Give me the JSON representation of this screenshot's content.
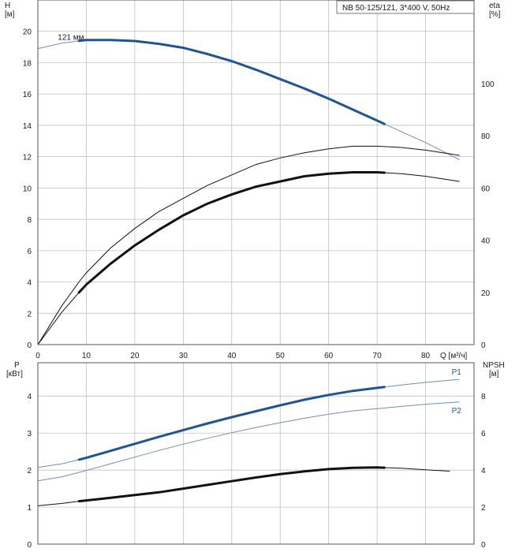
{
  "title": "NB 50-125/121, 3*400 V, 50Hz",
  "colors": {
    "operating": "#1f5596",
    "thin": "#6f8fb8",
    "black": "#111111",
    "grid": "#b8b8b8"
  },
  "chart_data": [
    {
      "type": "line",
      "name": "head-efficiency",
      "xlabel": "Q [м³/ч]",
      "ylabel_left": [
        "H",
        "[м]"
      ],
      "ylabel_right": [
        "eta",
        "[%]"
      ],
      "xlim": [
        0,
        90
      ],
      "ylim": [
        0,
        22
      ],
      "ylim_right": [
        0,
        132
      ],
      "grid": true,
      "x_ticks": [
        0,
        10,
        20,
        30,
        40,
        50,
        60,
        70,
        80
      ],
      "y_ticks_left": [
        0,
        2,
        4,
        6,
        8,
        10,
        12,
        14,
        16,
        18,
        20
      ],
      "y_ticks_right": [
        0,
        20,
        40,
        60,
        80,
        100
      ],
      "annotations": [
        {
          "text": "121 мм",
          "x": 9,
          "y": 19.5
        }
      ],
      "series": [
        {
          "name": "",
          "axis": "left",
          "color": "#1f5596",
          "x": [
            0,
            5,
            10,
            15,
            20,
            25,
            30,
            35,
            40,
            45,
            50,
            55,
            60,
            65,
            70,
            75,
            80,
            87
          ],
          "y": [
            18.9,
            19.25,
            19.45,
            19.45,
            19.38,
            19.2,
            18.95,
            18.55,
            18.1,
            17.55,
            16.95,
            16.35,
            15.7,
            15.0,
            14.3,
            13.6,
            12.9,
            11.8
          ],
          "operating_range": [
            8.5,
            71.5
          ]
        },
        {
          "name": "",
          "axis": "right",
          "color": "#111111",
          "x": [
            0,
            5,
            8.5,
            10,
            15,
            20,
            25,
            30,
            35,
            40,
            45,
            50,
            55,
            60,
            65,
            70,
            75,
            80,
            87
          ],
          "y": [
            0,
            15,
            24,
            27.5,
            37,
            44.5,
            51,
            56,
            61,
            65,
            69,
            71.5,
            73.5,
            75,
            76,
            76,
            75.5,
            74.5,
            72.5
          ]
        },
        {
          "name": "",
          "axis": "right",
          "color": "#111111",
          "x": [
            0,
            5,
            8.5,
            10,
            15,
            20,
            25,
            30,
            35,
            40,
            45,
            50,
            55,
            60,
            65,
            70,
            75,
            80,
            87
          ],
          "y": [
            0,
            12.5,
            20,
            23,
            31,
            38,
            44,
            49.5,
            54,
            57.5,
            60.5,
            62.5,
            64.5,
            65.5,
            66,
            66,
            65.5,
            64.5,
            62.5
          ],
          "operating_range": [
            8.5,
            71.5
          ]
        }
      ]
    },
    {
      "type": "line",
      "name": "power-npsh",
      "xlim": [
        0,
        90
      ],
      "ylim": [
        0,
        4.9
      ],
      "ylim_right": [
        0,
        9.8
      ],
      "grid": true,
      "ylabel_left": [
        "P",
        "[кВт]"
      ],
      "ylabel_right": [
        "NPSH",
        "[м]"
      ],
      "y_ticks_left": [
        0,
        1,
        2,
        3,
        4
      ],
      "y_ticks_right": [
        0,
        2,
        4,
        6,
        8
      ],
      "series": [
        {
          "name": "P1",
          "axis": "left",
          "color": "#1f5596",
          "x": [
            0,
            5,
            10,
            15,
            20,
            25,
            30,
            35,
            40,
            45,
            50,
            55,
            60,
            65,
            70,
            75,
            80,
            87
          ],
          "y": [
            2.07,
            2.17,
            2.33,
            2.52,
            2.71,
            2.9,
            3.08,
            3.26,
            3.43,
            3.59,
            3.75,
            3.9,
            4.03,
            4.14,
            4.22,
            4.3,
            4.37,
            4.45
          ],
          "operating_range": [
            8.5,
            71.5
          ]
        },
        {
          "name": "P2",
          "axis": "left",
          "color": "#1f5596",
          "x": [
            0,
            5,
            10,
            15,
            20,
            25,
            30,
            35,
            40,
            45,
            50,
            55,
            60,
            65,
            70,
            75,
            80,
            87
          ],
          "y": [
            1.71,
            1.82,
            1.99,
            2.17,
            2.35,
            2.53,
            2.7,
            2.86,
            3.01,
            3.15,
            3.28,
            3.4,
            3.51,
            3.6,
            3.66,
            3.72,
            3.78,
            3.84
          ]
        },
        {
          "name": "",
          "axis": "right",
          "color": "#111111",
          "x": [
            0,
            5,
            8.5,
            10,
            15,
            20,
            25,
            30,
            35,
            40,
            45,
            50,
            55,
            60,
            65,
            70,
            75,
            80,
            85
          ],
          "y": [
            2.07,
            2.2,
            2.32,
            2.36,
            2.5,
            2.65,
            2.8,
            3.0,
            3.2,
            3.4,
            3.6,
            3.78,
            3.93,
            4.05,
            4.12,
            4.14,
            4.1,
            4.02,
            3.94
          ],
          "operating_range": [
            8.5,
            71.5
          ]
        }
      ]
    }
  ]
}
